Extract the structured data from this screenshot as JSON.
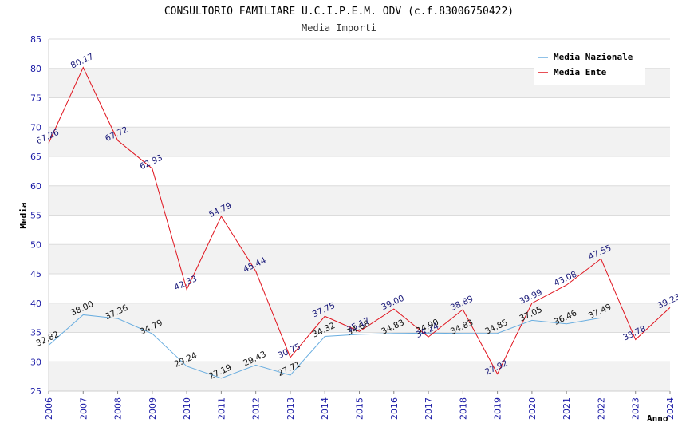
{
  "chart_data": {
    "type": "line",
    "title": "CONSULTORIO FAMILIARE U.C.I.P.E.M. ODV (c.f.83006750422)",
    "subtitle": "Media Importi",
    "xlabel": "Anno",
    "ylabel": "Media",
    "ylim": [
      25,
      85
    ],
    "yticks": [
      25,
      30,
      35,
      40,
      45,
      50,
      55,
      60,
      65,
      70,
      75,
      80,
      85
    ],
    "categories": [
      "2006",
      "2007",
      "2008",
      "2009",
      "2010",
      "2011",
      "2012",
      "2013",
      "2014",
      "2015",
      "2016",
      "2017",
      "2018",
      "2019",
      "2020",
      "2021",
      "2022",
      "2023",
      "2024"
    ],
    "series": [
      {
        "name": "Media Nazionale",
        "color": "#6aaee0",
        "values": [
          32.82,
          38.0,
          37.36,
          34.79,
          29.24,
          27.19,
          29.43,
          27.71,
          34.32,
          34.68,
          34.83,
          34.9,
          34.83,
          34.85,
          37.05,
          36.46,
          37.49,
          null,
          null
        ],
        "labels": [
          "32.82",
          "38.00",
          "37.36",
          "34.79",
          "29.24",
          "27.19",
          "29.43",
          "27.71",
          "34.32",
          "34.68",
          "34.83",
          "34.90",
          "34.83",
          "34.85",
          "37.05",
          "36.46",
          "37.49",
          "",
          ""
        ]
      },
      {
        "name": "Media Ente",
        "color": "#e0141e",
        "values": [
          67.26,
          80.17,
          67.72,
          62.93,
          42.33,
          54.79,
          45.44,
          30.75,
          37.75,
          35.17,
          39.0,
          34.24,
          38.89,
          27.92,
          39.99,
          43.08,
          47.55,
          33.78,
          39.23
        ],
        "labels": [
          "67.26",
          "80.17",
          "67.72",
          "62.93",
          "42.33",
          "54.79",
          "45.44",
          "30.75",
          "37.75",
          "35.17",
          "39.00",
          "34.24",
          "38.89",
          "27.92",
          "39.99",
          "43.08",
          "47.55",
          "33.78",
          "39.23"
        ]
      }
    ],
    "legend": "top-right",
    "grid": true
  }
}
